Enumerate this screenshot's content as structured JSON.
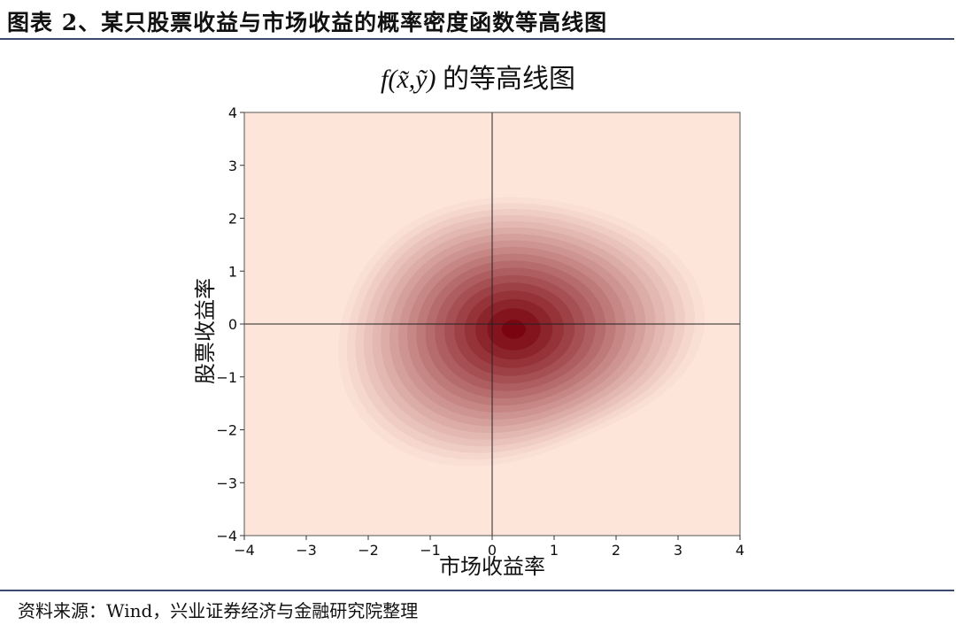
{
  "header": {
    "figure_title": "图表 2、某只股票收益与市场收益的概率密度函数等高线图",
    "source": "资料来源：Wind，兴业证券经济与金融研究院整理"
  },
  "chart_data": {
    "type": "heatmap",
    "subtype": "kde-contour",
    "title_math": "f(x̃,ỹ)",
    "title_text": " 的等高线图",
    "xlabel": "市场收益率",
    "ylabel": "股票收益率",
    "xlim": [
      -4,
      4
    ],
    "ylim": [
      -4,
      4
    ],
    "xticks": [
      -4,
      -3,
      -2,
      -1,
      0,
      1,
      2,
      3,
      4
    ],
    "yticks": [
      -4,
      -3,
      -2,
      -1,
      0,
      1,
      2,
      3,
      4
    ],
    "xtick_labels": [
      "−4",
      "−3",
      "−2",
      "−1",
      "0",
      "1",
      "2",
      "3",
      "4"
    ],
    "ytick_labels": [
      "−4",
      "−3",
      "−2",
      "−1",
      "0",
      "1",
      "2",
      "3",
      "4"
    ],
    "reference_lines": {
      "x": 0,
      "y": 0
    },
    "density_peak": {
      "x": 0.35,
      "y": -0.1
    },
    "colormap": "Reds",
    "color_low": "#fde5da",
    "color_high": "#7a0510",
    "grid": false
  }
}
